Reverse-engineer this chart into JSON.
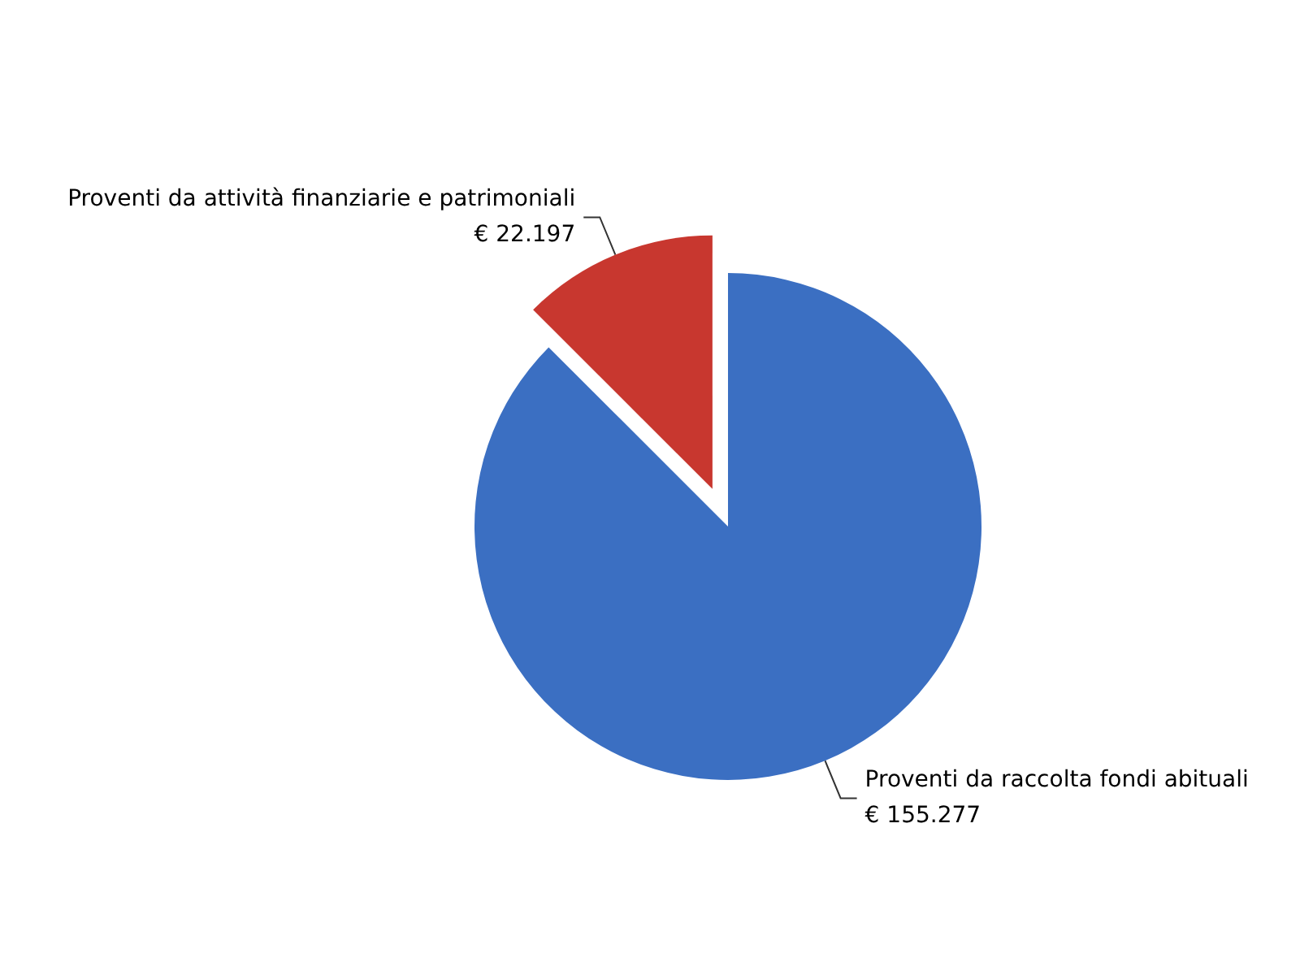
{
  "chart_data": {
    "type": "pie",
    "categories": [
      "Proventi da raccolta fondi abituali",
      "Proventi da attività finanziarie e patrimoniali"
    ],
    "values": [
      155277,
      22197
    ],
    "colors": [
      "#3b6fc2",
      "#c8372f"
    ],
    "value_labels": [
      "€ 155.277",
      "€ 22.197"
    ]
  }
}
